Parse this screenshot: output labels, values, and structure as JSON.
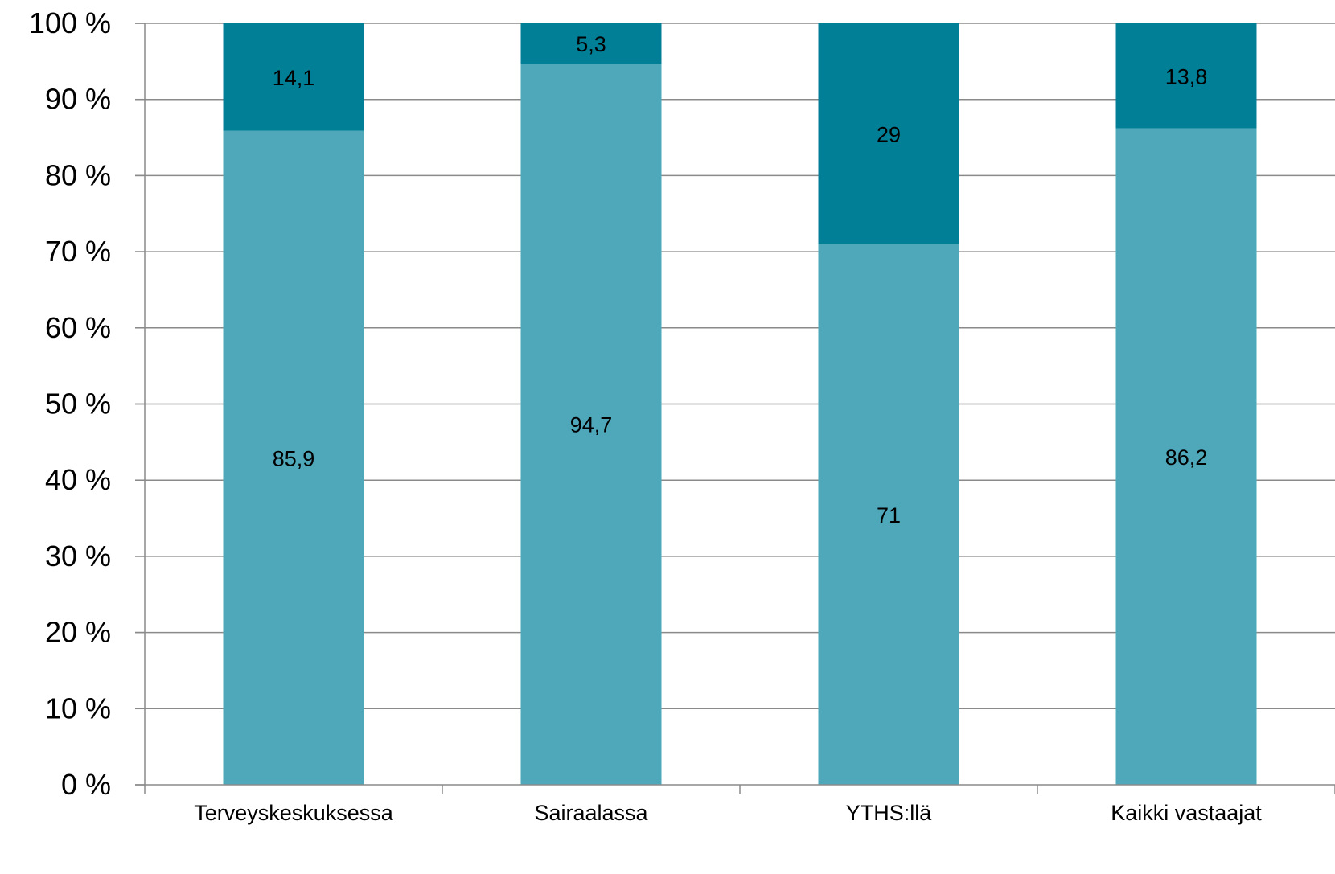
{
  "chart_data": {
    "type": "bar",
    "stacked": true,
    "percent_stacked": true,
    "categories": [
      "Terveyskeskuksessa",
      "Sairaalassa",
      "YTHS:llä",
      "Kaikki vastaajat"
    ],
    "series": [
      {
        "values": [
          85.9,
          94.7,
          71,
          86.2
        ],
        "labels": [
          "85,9",
          "94,7",
          "71",
          "86,2"
        ],
        "color": "#4ea8ba"
      },
      {
        "values": [
          14.1,
          5.3,
          29,
          13.8
        ],
        "labels": [
          "14,1",
          "5,3",
          "29",
          "13,8"
        ],
        "color": "#007f97"
      }
    ],
    "yticks": [
      "0 %",
      "10 %",
      "20 %",
      "30 %",
      "40 %",
      "50 %",
      "60 %",
      "70 %",
      "80 %",
      "90 %",
      "100 %"
    ],
    "ylim": [
      0,
      100
    ],
    "grid": true,
    "legend": "none"
  }
}
